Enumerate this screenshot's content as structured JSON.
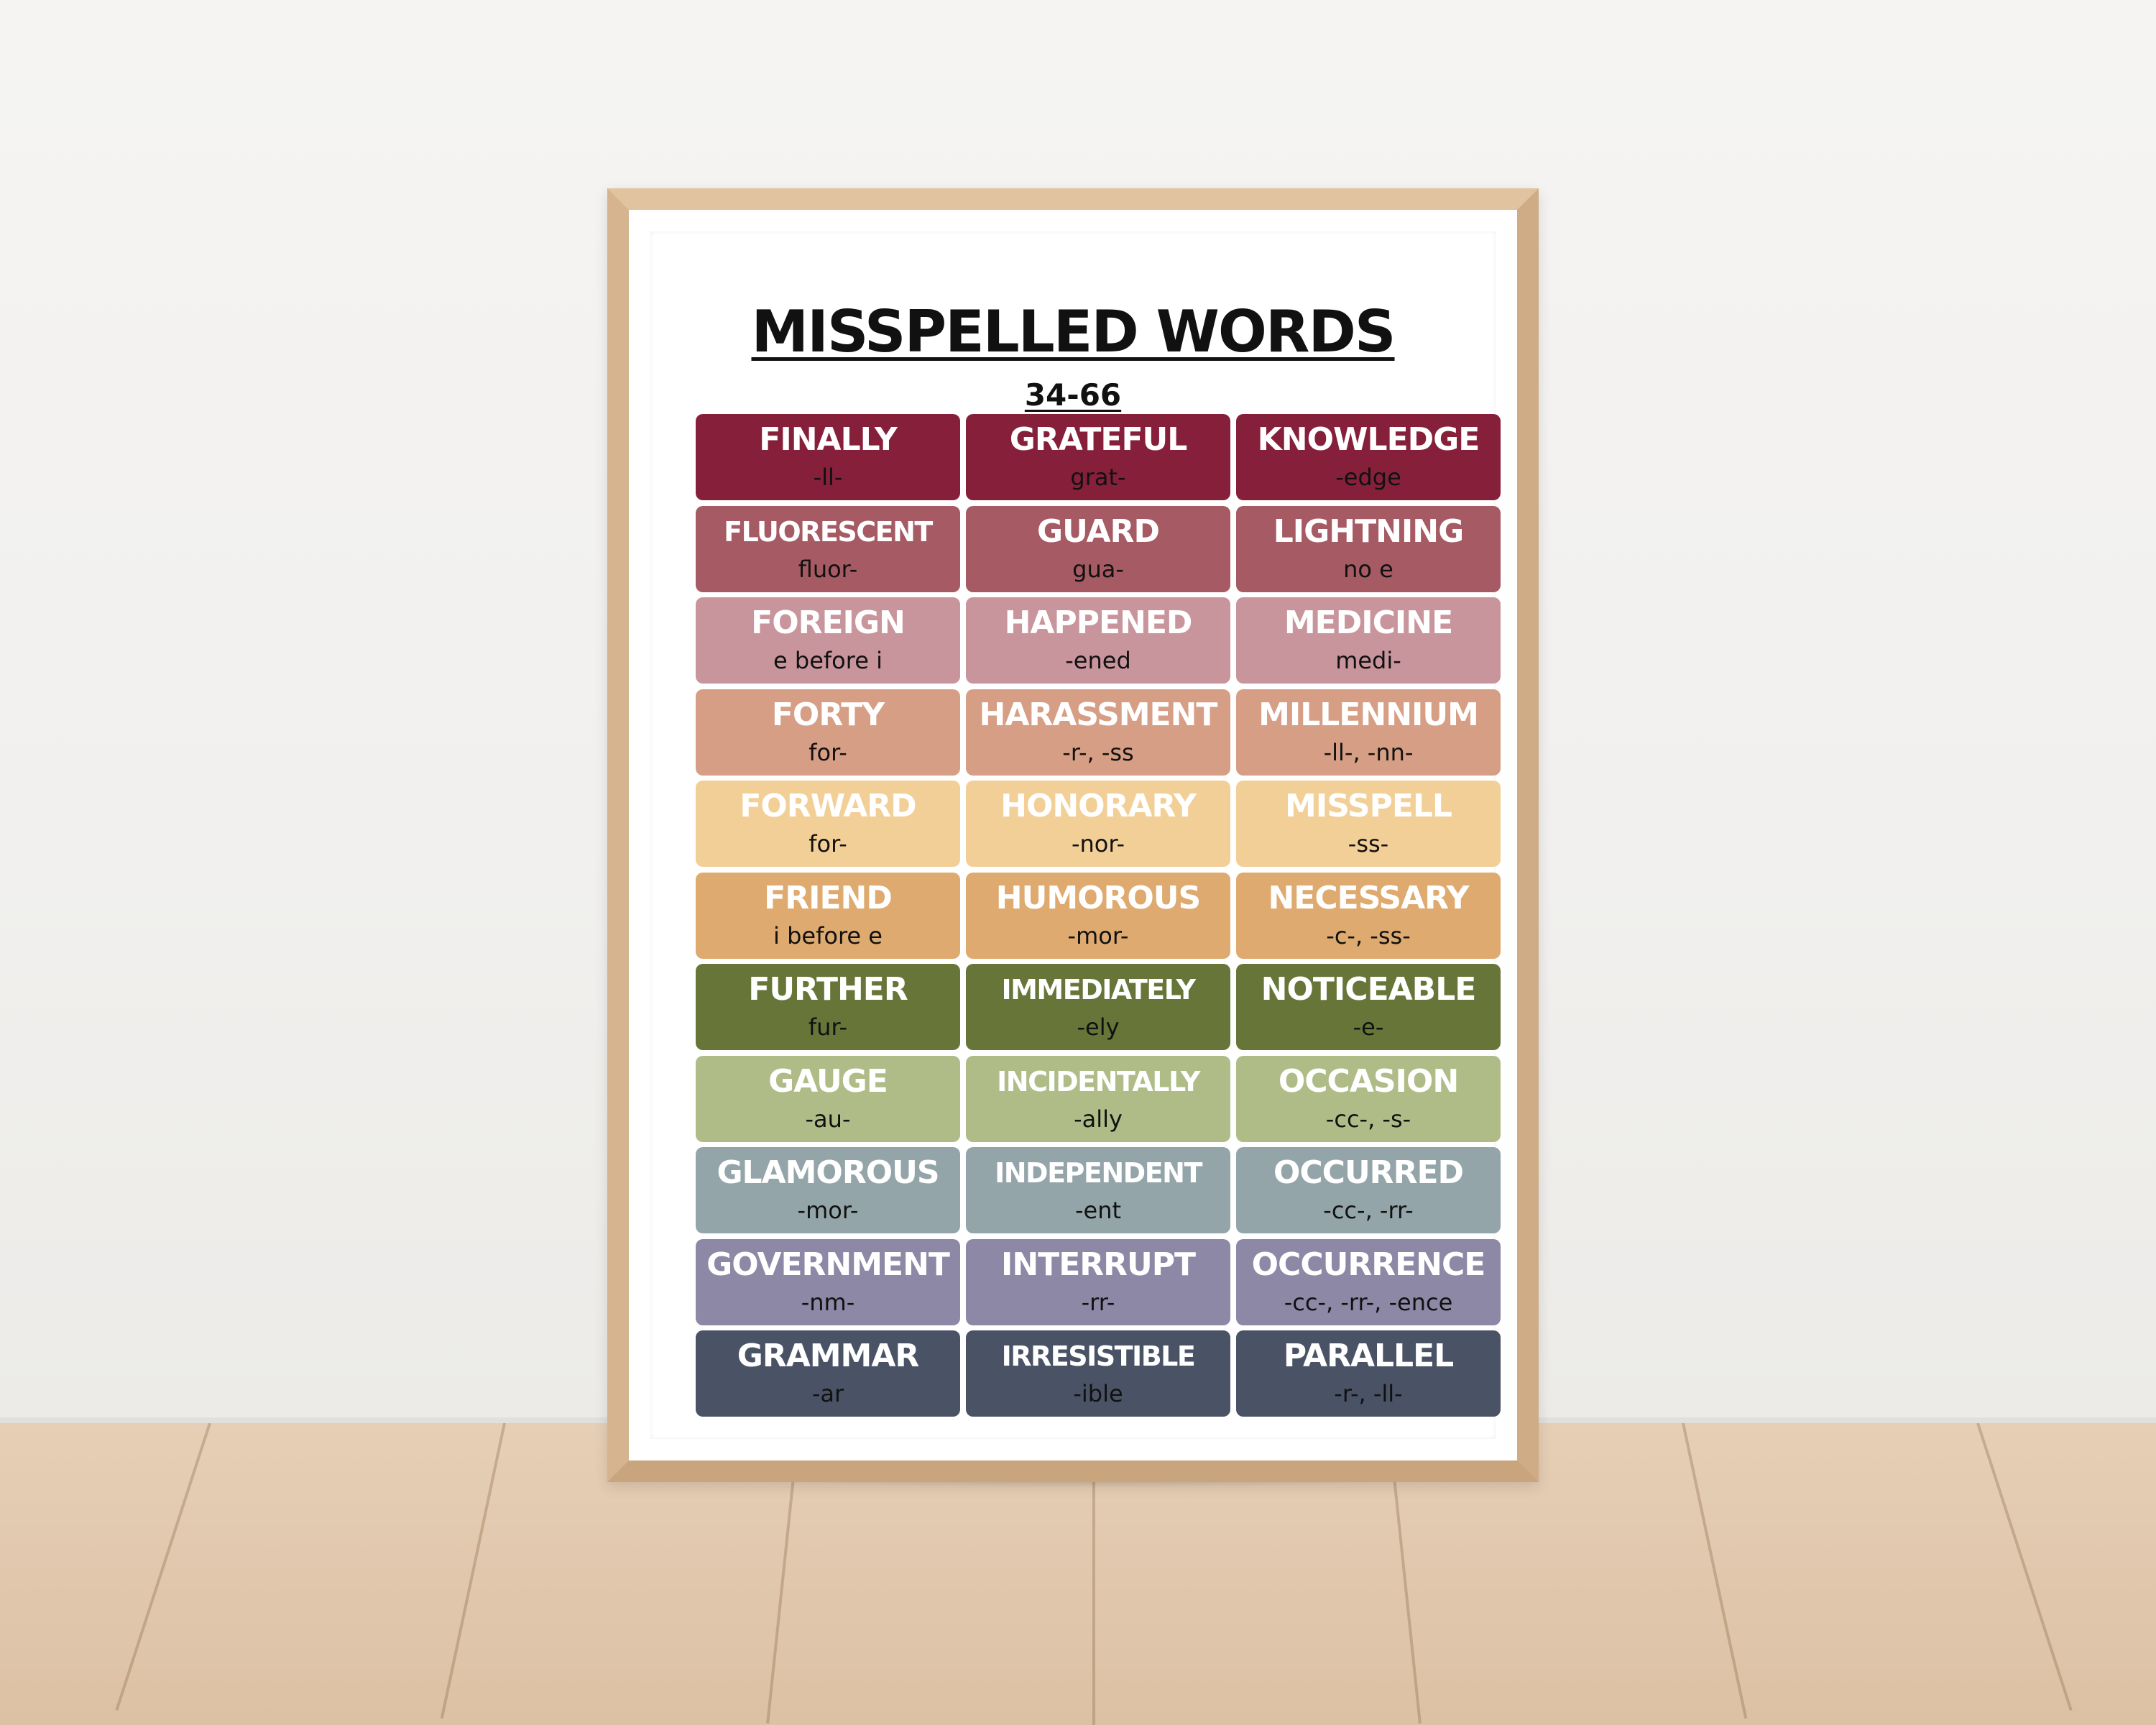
{
  "poster": {
    "title": "MISSPELLED WORDS",
    "subtitle": "34-66"
  },
  "rows": [
    {
      "color": "#86203a",
      "text_color": "#ffffff",
      "cells": [
        {
          "word": "FINALLY",
          "hint": "-ll-"
        },
        {
          "word": "GRATEFUL",
          "hint": "grat-"
        },
        {
          "word": "KNOWLEDGE",
          "hint": "-edge"
        }
      ]
    },
    {
      "color": "#a65a63",
      "text_color": "#ffffff",
      "cells": [
        {
          "word": "FLUORESCENT",
          "hint": "fluor-"
        },
        {
          "word": "GUARD",
          "hint": "gua-"
        },
        {
          "word": "LIGHTNING",
          "hint": "no e"
        }
      ]
    },
    {
      "color": "#c9959c",
      "text_color": "#ffffff",
      "cells": [
        {
          "word": "FOREIGN",
          "hint": "e before i"
        },
        {
          "word": "HAPPENED",
          "hint": "-ened"
        },
        {
          "word": "MEDICINE",
          "hint": "medi-"
        }
      ]
    },
    {
      "color": "#d69e84",
      "text_color": "#ffffff",
      "cells": [
        {
          "word": "FORTY",
          "hint": "for-"
        },
        {
          "word": "HARASSMENT",
          "hint": "-r-, -ss"
        },
        {
          "word": "MILLENNIUM",
          "hint": "-ll-, -nn-"
        }
      ]
    },
    {
      "color": "#f2cf97",
      "text_color": "#ffffff",
      "cells": [
        {
          "word": "FORWARD",
          "hint": "for-"
        },
        {
          "word": "HONORARY",
          "hint": "-nor-"
        },
        {
          "word": "MISSPELL",
          "hint": "-ss-"
        }
      ]
    },
    {
      "color": "#deaa6f",
      "text_color": "#ffffff",
      "cells": [
        {
          "word": "FRIEND",
          "hint": "i before e"
        },
        {
          "word": "HUMOROUS",
          "hint": "-mor-"
        },
        {
          "word": "NECESSARY",
          "hint": "-c-, -ss-"
        }
      ]
    },
    {
      "color": "#677538",
      "text_color": "#ffffff",
      "cells": [
        {
          "word": "FURTHER",
          "hint": "fur-"
        },
        {
          "word": "IMMEDIATELY",
          "hint": "-ely"
        },
        {
          "word": "NOTICEABLE",
          "hint": "-e-"
        }
      ]
    },
    {
      "color": "#b0bc87",
      "text_color": "#ffffff",
      "cells": [
        {
          "word": "GAUGE",
          "hint": "-au-"
        },
        {
          "word": "INCIDENTALLY",
          "hint": "-ally"
        },
        {
          "word": "OCCASION",
          "hint": "-cc-, -s-"
        }
      ]
    },
    {
      "color": "#94a5aa",
      "text_color": "#ffffff",
      "cells": [
        {
          "word": "GLAMOROUS",
          "hint": "-mor-"
        },
        {
          "word": "INDEPENDENT",
          "hint": "-ent"
        },
        {
          "word": "OCCURRED",
          "hint": "-cc-, -rr-"
        }
      ]
    },
    {
      "color": "#8c88a5",
      "text_color": "#ffffff",
      "cells": [
        {
          "word": "GOVERNMENT",
          "hint": "-nm-"
        },
        {
          "word": "INTERRUPT",
          "hint": "-rr-"
        },
        {
          "word": "OCCURRENCE",
          "hint": "-cc-, -rr-, -ence"
        }
      ]
    },
    {
      "color": "#4a5366",
      "text_color": "#ffffff",
      "cells": [
        {
          "word": "GRAMMAR",
          "hint": "-ar"
        },
        {
          "word": "IRRESISTIBLE",
          "hint": "-ible"
        },
        {
          "word": "PARALLEL",
          "hint": "-r-, -ll-"
        }
      ]
    }
  ]
}
